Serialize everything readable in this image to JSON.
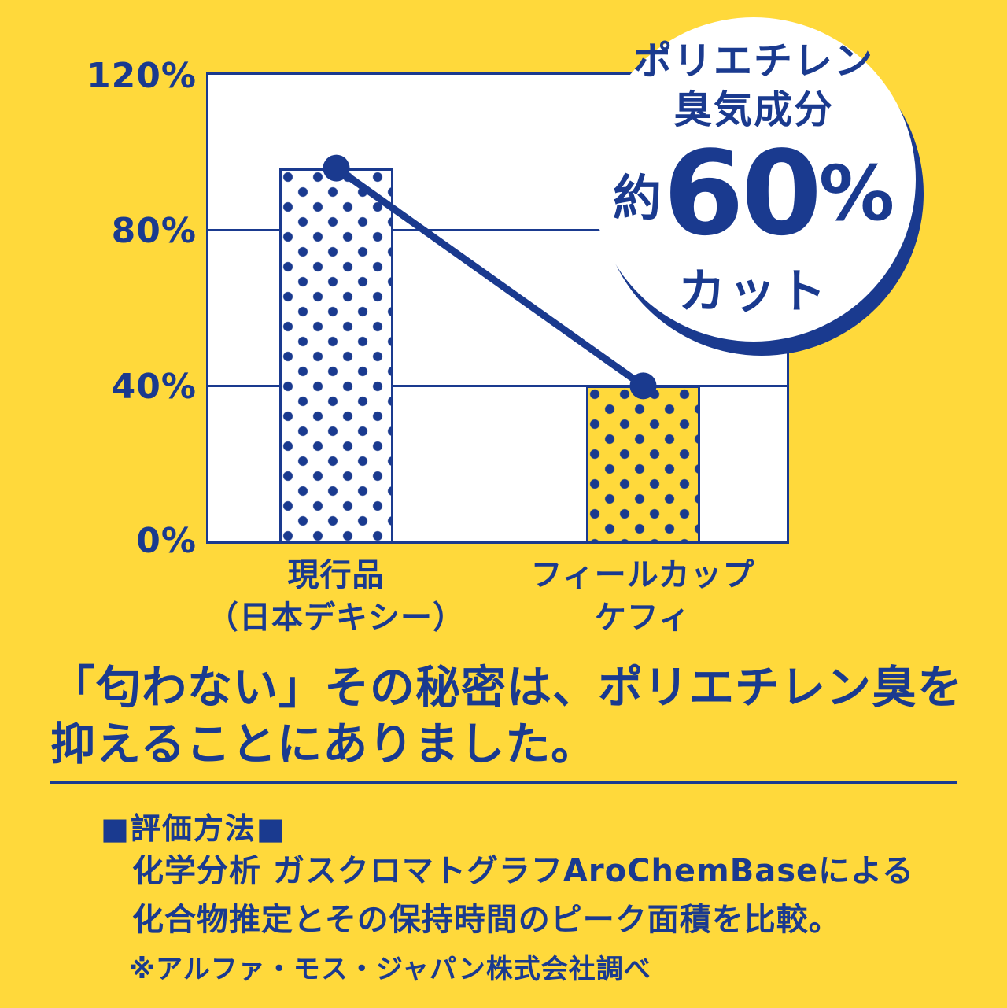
{
  "colors": {
    "background": "#FFD93B",
    "navy": "#1A3A8F",
    "plot_background": "#FFFFFF"
  },
  "chart_data": {
    "type": "bar",
    "categories": [
      "現行品（日本デキシー）",
      "フィールカップ ケフィ"
    ],
    "values": [
      96,
      40
    ],
    "unit": "%",
    "ylim": [
      0,
      120
    ],
    "ytick_labels": [
      "120%",
      "80%",
      "40%",
      "0%"
    ],
    "x_tick_lines": [
      {
        "line1": "現行品",
        "line2": "（日本デキシー）"
      },
      {
        "line1": "フィールカップ",
        "line2": "ケフィ"
      }
    ],
    "grid": true,
    "connector_line": true,
    "annotation": "ポリエチレン臭気成分 約60%カット",
    "legend": "none"
  },
  "badge": {
    "line1": "ポリエチレン",
    "line2": "臭気成分",
    "approx": "約",
    "value": "60",
    "percent_sign": "%",
    "suffix": "カット"
  },
  "headline": {
    "line1": "「匂わない」その秘密は、ポリエチレン臭を",
    "line2": "抑えることにありました。"
  },
  "method": {
    "heading": "■評価方法■",
    "body_line1": "化学分析 ガスクロマトグラフAroChemBaseによる",
    "body_line2": "化合物推定とその保持時間のピーク面積を比較。",
    "footnote": "※アルファ・モス・ジャパン株式会社調べ"
  }
}
